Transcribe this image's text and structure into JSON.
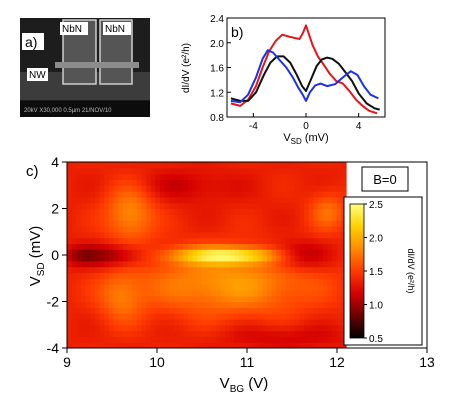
{
  "panel_a": {
    "label": "a)",
    "electrode_left": "NbN",
    "electrode_right": "NbN",
    "wire_label": "NW",
    "sem_info": "20kV  X30,000  0.5µm   21/NOV/10"
  },
  "chart_data": [
    {
      "panel": "b)",
      "type": "line",
      "xlabel_main": "V",
      "xlabel_sub": "SD",
      "xlabel_unit": " (mV)",
      "ylabel": "dI/dV  (e²/h)",
      "xlim": [
        -6,
        6
      ],
      "ylim": [
        0.8,
        2.4
      ],
      "xticks": [
        -4,
        0,
        4
      ],
      "yticks": [
        0.8,
        1.2,
        1.6,
        2.0,
        2.4
      ],
      "ytick_labels": [
        "0.8",
        "1.2",
        "1.6",
        "2.0",
        "2.4"
      ],
      "series": [
        {
          "color": "#e8141c",
          "x": [
            -5.7,
            -5,
            -4.4,
            -3.8,
            -3.3,
            -2.8,
            -2.3,
            -1.8,
            -1.3,
            -0.9,
            -0.5,
            -0.25,
            0,
            0.25,
            0.5,
            0.9,
            1.3,
            1.8,
            2.3,
            2.8,
            3.3,
            3.8,
            4.3,
            4.8,
            5.4
          ],
          "y": [
            1.02,
            0.98,
            1.08,
            1.3,
            1.6,
            1.86,
            2.03,
            2.13,
            2.1,
            2.08,
            2.06,
            2.15,
            2.28,
            2.12,
            1.96,
            1.78,
            1.66,
            1.5,
            1.38,
            1.34,
            1.22,
            1.08,
            0.98,
            0.9,
            0.86
          ]
        },
        {
          "color": "#111111",
          "x": [
            -5.7,
            -5,
            -4.4,
            -3.8,
            -3.2,
            -2.7,
            -2.2,
            -1.7,
            -1.2,
            -0.7,
            -0.3,
            0,
            0.4,
            0.8,
            1.2,
            1.6,
            2.0,
            2.5,
            3.0,
            3.5,
            4.0,
            4.6,
            5.2,
            5.6
          ],
          "y": [
            1.1,
            1.06,
            1.06,
            1.2,
            1.48,
            1.68,
            1.78,
            1.78,
            1.68,
            1.48,
            1.3,
            1.22,
            1.42,
            1.62,
            1.73,
            1.76,
            1.74,
            1.66,
            1.52,
            1.38,
            1.18,
            1.02,
            0.94,
            0.92
          ]
        },
        {
          "color": "#1a33e6",
          "x": [
            -5.7,
            -5,
            -4.4,
            -3.8,
            -3.3,
            -2.9,
            -2.5,
            -2.0,
            -1.5,
            -1.0,
            -0.6,
            -0.25,
            0,
            0.3,
            0.7,
            1.1,
            1.6,
            2.2,
            2.8,
            3.4,
            3.9,
            4.4,
            4.9,
            5.5
          ],
          "y": [
            1.06,
            1.04,
            1.16,
            1.44,
            1.74,
            1.88,
            1.84,
            1.72,
            1.6,
            1.44,
            1.28,
            1.16,
            1.06,
            1.2,
            1.31,
            1.34,
            1.3,
            1.33,
            1.44,
            1.54,
            1.48,
            1.3,
            1.16,
            1.1
          ]
        }
      ]
    },
    {
      "panel": "c)",
      "type": "heatmap",
      "annotation": "B=0",
      "xlabel_main": "V",
      "xlabel_sub": "BG",
      "xlabel_unit": " (V)",
      "ylabel_main": "V",
      "ylabel_sub": "SD",
      "ylabel_unit": " (mV)",
      "xlim": [
        9,
        13
      ],
      "ylim": [
        -4,
        4
      ],
      "data_xlim": [
        9,
        12.1
      ],
      "xticks": [
        9,
        10,
        11,
        12,
        13
      ],
      "yticks": [
        -4,
        -2,
        0,
        2,
        4
      ],
      "colorbar": {
        "label": "dI/dV  (e²/h)",
        "range": [
          0.5,
          2.5
        ],
        "ticks": [
          0.5,
          1.0,
          1.5,
          2.0,
          2.5
        ],
        "tick_labels": [
          "0.5",
          "1.0",
          "1.5",
          "2.0",
          "2.5"
        ],
        "colors": [
          "#000000",
          "#6a0000",
          "#d40000",
          "#ff3a00",
          "#ff8a00",
          "#ffd000",
          "#ffff80"
        ]
      },
      "features": [
        {
          "x": 10.8,
          "y": 0.0,
          "sx": 0.45,
          "sy": 0.25,
          "amp": 0.9
        },
        {
          "x": 10.8,
          "y": -1.2,
          "sx": 0.7,
          "sy": 1.0,
          "amp": 0.55
        },
        {
          "x": 9.7,
          "y": 1.8,
          "sx": 0.2,
          "sy": 0.9,
          "amp": 0.5
        },
        {
          "x": 9.6,
          "y": -1.8,
          "sx": 0.18,
          "sy": 0.8,
          "amp": 0.35
        },
        {
          "x": 11.9,
          "y": 1.9,
          "sx": 0.15,
          "sy": 0.6,
          "amp": 0.35
        },
        {
          "x": 9.55,
          "y": 0.0,
          "sx": 0.25,
          "sy": 0.35,
          "amp": -0.45
        },
        {
          "x": 11.55,
          "y": 0.0,
          "sx": 0.25,
          "sy": 0.4,
          "amp": -0.5
        },
        {
          "x": 9.15,
          "y": 0.0,
          "sx": 0.15,
          "sy": 0.3,
          "amp": -0.3
        },
        {
          "x": 10.3,
          "y": 3.0,
          "sx": 0.4,
          "sy": 0.5,
          "amp": -0.2
        },
        {
          "x": 11.4,
          "y": -3.5,
          "sx": 0.5,
          "sy": 0.4,
          "amp": -0.2
        }
      ],
      "base": 1.35
    }
  ]
}
